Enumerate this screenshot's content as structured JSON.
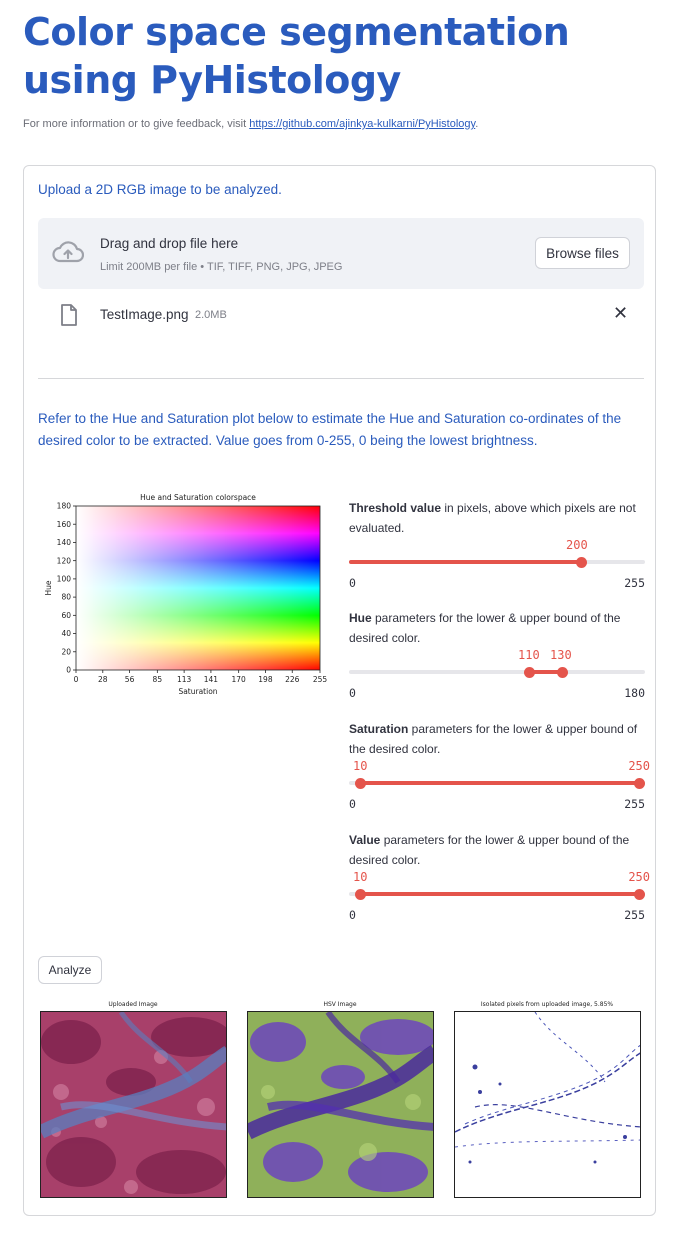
{
  "header": {
    "title": "Color space segmentation using PyHistology",
    "info_prefix": "For more information or to give feedback, visit ",
    "info_link": "https://github.com/ajinkya-kulkarni/PyHistology",
    "info_suffix": "."
  },
  "uploader": {
    "label": "Upload a 2D RGB image to be analyzed.",
    "drop_title": "Drag and drop file here",
    "limit_text": "Limit 200MB per file • TIF, TIFF, PNG, JPG, JPEG",
    "browse_label": "Browse files",
    "file_name": "TestImage.png",
    "file_size": "2.0MB",
    "remove_glyph": "✕"
  },
  "instructions": "Refer to the Hue and Saturation plot below to estimate the Hue and Saturation co-ordinates of the desired color to be extracted. Value goes from 0-255, 0 being the lowest brightness.",
  "chart_data": {
    "type": "heatmap",
    "title": "Hue and Saturation colorspace",
    "xlabel": "Saturation",
    "ylabel": "Hue",
    "xlim": [
      0,
      255
    ],
    "ylim": [
      0,
      180
    ],
    "xticks": [
      "0",
      "28",
      "56",
      "85",
      "113",
      "141",
      "170",
      "198",
      "226",
      "255"
    ],
    "yticks": [
      "0",
      "20",
      "40",
      "60",
      "80",
      "100",
      "120",
      "140",
      "160",
      "180"
    ]
  },
  "sliders": {
    "threshold": {
      "bold": "Threshold value",
      "rest": " in pixels, above which pixels are not evaluated.",
      "min": 0,
      "max": 255,
      "value": 200,
      "min_label": "0",
      "max_label": "255",
      "value_label": "200"
    },
    "hue": {
      "bold": "Hue",
      "rest": " parameters for the lower & upper bound of the desired color.",
      "min": 0,
      "max": 180,
      "low": 110,
      "high": 130,
      "min_label": "0",
      "max_label": "180",
      "low_label": "110",
      "high_label": "130"
    },
    "saturation": {
      "bold": "Saturation",
      "rest": " parameters for the lower & upper bound of the desired color.",
      "min": 0,
      "max": 255,
      "low": 10,
      "high": 250,
      "min_label": "0",
      "max_label": "255",
      "low_label": "10",
      "high_label": "250"
    },
    "value": {
      "bold": "Value",
      "rest": " parameters for the lower & upper bound of the desired color.",
      "min": 0,
      "max": 255,
      "low": 10,
      "high": 250,
      "min_label": "0",
      "max_label": "255",
      "low_label": "10",
      "high_label": "250"
    }
  },
  "analyze_label": "Analyze",
  "outputs": {
    "uploaded_title": "Uploaded Image",
    "hsv_title": "HSV Image",
    "isolated_title": "Isolated pixels from uploaded image, 5.85%"
  },
  "colors": {
    "accent": "#e4544b",
    "heading": "#2a5bbd"
  }
}
